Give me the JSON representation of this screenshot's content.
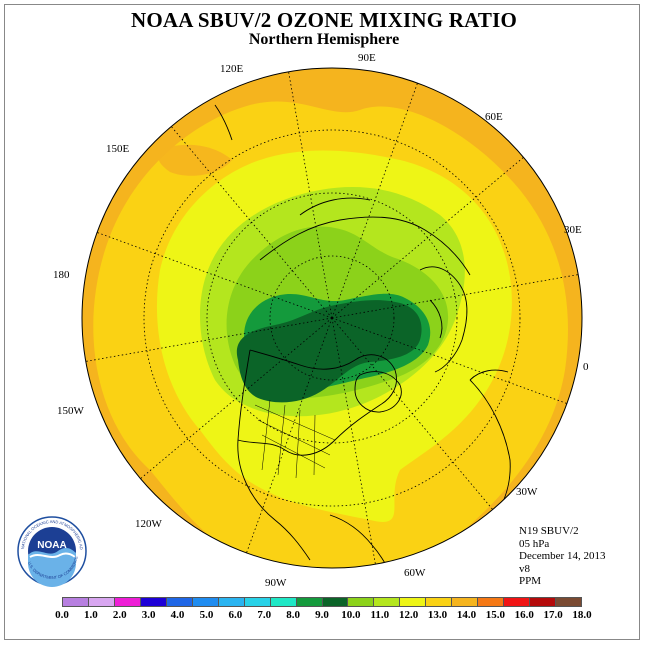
{
  "title": "NOAA SBUV/2 OZONE MIXING RATIO",
  "subtitle": "Northern Hemisphere",
  "info": {
    "satellite": "N19 SBUV/2",
    "level": "05 hPa",
    "date": "December 14, 2013",
    "version": "v8",
    "units": "PPM"
  },
  "longitude_labels": {
    "e90": "90E",
    "e60": "60E",
    "e30": "30E",
    "zero": "0",
    "w30": "30W",
    "w60": "60W",
    "w90": "90W",
    "w120": "120W",
    "w150": "150W",
    "d180": "180",
    "e150": "150E",
    "e120": "120E"
  },
  "colorbar": {
    "ticks": [
      "0.0",
      "1.0",
      "2.0",
      "3.0",
      "4.0",
      "5.0",
      "6.0",
      "7.0",
      "8.0",
      "9.0",
      "10.0",
      "11.0",
      "12.0",
      "13.0",
      "14.0",
      "15.0",
      "16.0",
      "17.0",
      "18.0"
    ],
    "colors": [
      "#b77fe0",
      "#d8a6f0",
      "#ee1ed6",
      "#1d00d6",
      "#1f66e6",
      "#1f8cf0",
      "#2ab4f0",
      "#28d2e8",
      "#1fe8c6",
      "#149a3c",
      "#0b6428",
      "#8cd21a",
      "#b4e61e",
      "#eef516",
      "#fad214",
      "#f5b41e",
      "#f57814",
      "#f01414",
      "#b40a0a",
      "#7a4a32"
    ]
  },
  "logo": {
    "text": "NOAA",
    "ring_text_top": "NATIONAL OCEANIC AND ATMOSPHERIC ADMINISTRATION",
    "ring_text_bottom": "U.S. DEPARTMENT OF COMMERCE"
  }
}
